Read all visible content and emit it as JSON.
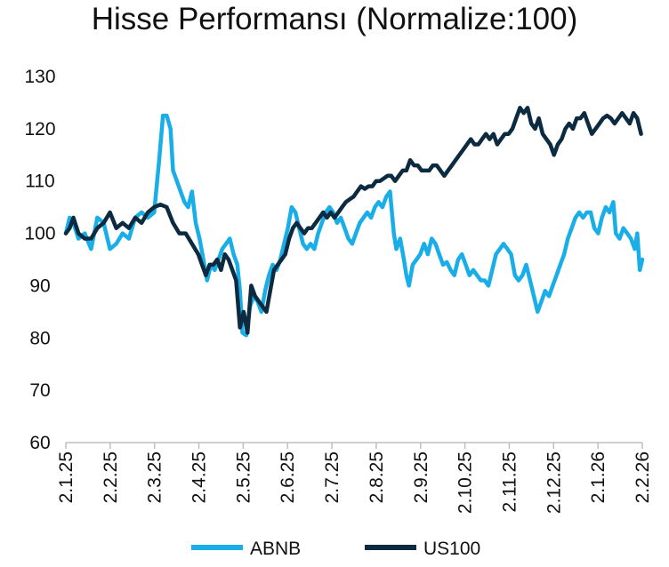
{
  "chart_data": {
    "type": "line",
    "title": "Hisse Performansı (Normalize:100)",
    "xlabel": "",
    "ylabel": "",
    "ylim": [
      60,
      130
    ],
    "yticks": [
      60,
      70,
      80,
      90,
      100,
      110,
      120,
      130
    ],
    "xticks": [
      "2.1.25",
      "2.2.25",
      "2.3.25",
      "2.4.25",
      "2.5.25",
      "2.6.25",
      "2.7.25",
      "2.8.25",
      "2.9.25",
      "2.10.25",
      "2.11.25",
      "2.12.25",
      "2.1.26",
      "2.2.26"
    ],
    "grid": false,
    "legend": "bottom",
    "series": [
      {
        "name": "ABNB",
        "color": "#1aaee8",
        "points": [
          [
            0,
            100
          ],
          [
            0.3,
            103
          ],
          [
            0.6,
            102
          ],
          [
            1,
            99
          ],
          [
            1.5,
            100
          ],
          [
            2,
            97
          ],
          [
            2.5,
            103
          ],
          [
            3,
            102
          ],
          [
            3.5,
            97
          ],
          [
            4,
            98
          ],
          [
            4.5,
            100
          ],
          [
            5,
            99
          ],
          [
            5.5,
            103
          ],
          [
            6,
            104
          ],
          [
            6.5,
            103
          ],
          [
            7,
            104
          ],
          [
            7.4,
            114
          ],
          [
            7.7,
            122.5
          ],
          [
            8,
            122.5
          ],
          [
            8.3,
            120
          ],
          [
            8.5,
            112
          ],
          [
            8.8,
            110
          ],
          [
            9.1,
            108
          ],
          [
            9.4,
            106
          ],
          [
            9.7,
            105
          ],
          [
            10,
            108
          ],
          [
            10.3,
            102
          ],
          [
            10.6,
            99
          ],
          [
            10.9,
            95
          ],
          [
            11.2,
            91
          ],
          [
            11.5,
            94
          ],
          [
            11.8,
            93
          ],
          [
            12.1,
            95
          ],
          [
            12.4,
            97
          ],
          [
            12.7,
            98
          ],
          [
            13,
            99
          ],
          [
            13.3,
            96
          ],
          [
            13.6,
            94
          ],
          [
            13.8,
            89
          ],
          [
            14,
            81
          ],
          [
            14.3,
            80.5
          ],
          [
            14.6,
            86
          ],
          [
            14.9,
            88
          ],
          [
            15.2,
            87
          ],
          [
            15.5,
            85
          ],
          [
            15.8,
            89
          ],
          [
            16.1,
            92
          ],
          [
            16.4,
            94
          ],
          [
            16.7,
            93
          ],
          [
            17,
            95
          ],
          [
            17.3,
            98
          ],
          [
            17.6,
            101
          ],
          [
            17.9,
            105
          ],
          [
            18.2,
            104
          ],
          [
            18.5,
            101
          ],
          [
            18.8,
            98
          ],
          [
            19.1,
            97
          ],
          [
            19.4,
            98
          ],
          [
            19.7,
            97
          ],
          [
            20,
            100
          ],
          [
            20.3,
            102
          ],
          [
            20.6,
            104
          ],
          [
            20.9,
            105
          ],
          [
            21.2,
            104
          ],
          [
            21.5,
            102
          ],
          [
            21.8,
            103
          ],
          [
            22.1,
            101
          ],
          [
            22.4,
            99
          ],
          [
            22.7,
            98
          ],
          [
            23,
            100
          ],
          [
            23.3,
            102
          ],
          [
            23.6,
            103
          ],
          [
            23.9,
            104
          ],
          [
            24.2,
            103
          ],
          [
            24.5,
            105
          ],
          [
            24.8,
            106
          ],
          [
            25.1,
            105
          ],
          [
            25.4,
            107
          ],
          [
            25.7,
            108
          ],
          [
            26,
            100
          ],
          [
            26.2,
            97
          ],
          [
            26.5,
            99
          ],
          [
            26.8,
            95
          ],
          [
            27,
            92
          ],
          [
            27.2,
            90
          ],
          [
            27.5,
            94
          ],
          [
            27.8,
            95
          ],
          [
            28.1,
            96
          ],
          [
            28.4,
            98
          ],
          [
            28.7,
            96
          ],
          [
            29,
            99
          ],
          [
            29.3,
            98
          ],
          [
            29.6,
            96
          ],
          [
            29.9,
            94
          ],
          [
            30.2,
            94.5
          ],
          [
            30.5,
            93
          ],
          [
            30.8,
            92
          ],
          [
            31.1,
            95
          ],
          [
            31.4,
            96
          ],
          [
            31.7,
            94
          ],
          [
            32,
            92
          ],
          [
            32.3,
            93
          ],
          [
            32.6,
            92
          ],
          [
            32.9,
            91
          ],
          [
            33.2,
            91
          ],
          [
            33.5,
            90
          ],
          [
            33.8,
            93
          ],
          [
            34.1,
            96
          ],
          [
            34.4,
            97
          ],
          [
            34.7,
            98
          ],
          [
            35,
            97
          ],
          [
            35.3,
            96
          ],
          [
            35.6,
            92
          ],
          [
            35.9,
            91
          ],
          [
            36.2,
            92
          ],
          [
            36.5,
            94
          ],
          [
            36.8,
            91
          ],
          [
            37.1,
            88
          ],
          [
            37.4,
            85
          ],
          [
            37.7,
            87
          ],
          [
            38,
            89
          ],
          [
            38.3,
            88
          ],
          [
            38.6,
            90
          ],
          [
            38.9,
            92
          ],
          [
            39.2,
            94
          ],
          [
            39.5,
            96
          ],
          [
            39.8,
            99
          ],
          [
            40.1,
            101
          ],
          [
            40.4,
            103
          ],
          [
            40.7,
            104
          ],
          [
            41,
            103
          ],
          [
            41.3,
            104
          ],
          [
            41.6,
            104
          ],
          [
            41.9,
            101
          ],
          [
            42.2,
            100
          ],
          [
            42.5,
            103
          ],
          [
            42.8,
            105
          ],
          [
            43.1,
            104
          ],
          [
            43.4,
            106
          ],
          [
            43.6,
            100
          ],
          [
            43.9,
            99
          ],
          [
            44.2,
            101
          ],
          [
            44.5,
            100
          ],
          [
            44.8,
            99
          ],
          [
            45.1,
            97
          ],
          [
            45.3,
            100
          ],
          [
            45.5,
            93
          ],
          [
            45.7,
            95
          ]
        ]
      },
      {
        "name": "US100",
        "color": "#0c2a40",
        "points": [
          [
            0,
            100
          ],
          [
            0.3,
            101
          ],
          [
            0.6,
            103
          ],
          [
            1,
            100
          ],
          [
            1.5,
            99
          ],
          [
            2,
            99
          ],
          [
            2.5,
            101
          ],
          [
            3,
            102
          ],
          [
            3.5,
            104
          ],
          [
            4,
            101
          ],
          [
            4.5,
            102
          ],
          [
            5,
            101
          ],
          [
            5.5,
            103
          ],
          [
            6,
            102
          ],
          [
            6.5,
            104
          ],
          [
            7,
            105
          ],
          [
            7.5,
            105.5
          ],
          [
            8,
            105
          ],
          [
            8.5,
            102
          ],
          [
            9,
            100
          ],
          [
            9.5,
            100
          ],
          [
            10,
            98
          ],
          [
            10.5,
            96
          ],
          [
            10.8,
            94
          ],
          [
            11.1,
            92
          ],
          [
            11.4,
            94
          ],
          [
            11.7,
            94
          ],
          [
            12,
            95
          ],
          [
            12.3,
            93
          ],
          [
            12.6,
            96
          ],
          [
            12.9,
            95
          ],
          [
            13.2,
            93
          ],
          [
            13.5,
            91
          ],
          [
            13.8,
            82
          ],
          [
            14.1,
            85
          ],
          [
            14.4,
            81
          ],
          [
            14.7,
            90
          ],
          [
            15,
            88
          ],
          [
            15.3,
            87
          ],
          [
            15.6,
            86
          ],
          [
            15.9,
            85
          ],
          [
            16.2,
            89
          ],
          [
            16.5,
            93
          ],
          [
            16.8,
            94
          ],
          [
            17.1,
            95
          ],
          [
            17.4,
            96
          ],
          [
            17.7,
            99
          ],
          [
            18,
            101
          ],
          [
            18.3,
            102
          ],
          [
            18.6,
            101
          ],
          [
            18.9,
            100
          ],
          [
            19.2,
            101
          ],
          [
            19.5,
            101
          ],
          [
            19.8,
            102
          ],
          [
            20.1,
            103
          ],
          [
            20.4,
            104
          ],
          [
            20.7,
            103
          ],
          [
            21,
            104
          ],
          [
            21.3,
            103
          ],
          [
            21.6,
            104
          ],
          [
            21.9,
            105
          ],
          [
            22.2,
            106
          ],
          [
            22.5,
            106.5
          ],
          [
            22.8,
            107
          ],
          [
            23.1,
            108
          ],
          [
            23.4,
            109
          ],
          [
            23.7,
            108.5
          ],
          [
            24,
            109
          ],
          [
            24.3,
            109
          ],
          [
            24.6,
            110
          ],
          [
            24.9,
            110
          ],
          [
            25.2,
            110.5
          ],
          [
            25.5,
            111
          ],
          [
            25.8,
            111
          ],
          [
            26.1,
            110
          ],
          [
            26.4,
            111
          ],
          [
            26.7,
            112
          ],
          [
            27,
            112
          ],
          [
            27.3,
            114
          ],
          [
            27.6,
            113
          ],
          [
            27.9,
            113
          ],
          [
            28.2,
            112
          ],
          [
            28.5,
            112
          ],
          [
            28.8,
            112
          ],
          [
            29.1,
            113
          ],
          [
            29.4,
            113
          ],
          [
            29.7,
            112
          ],
          [
            30,
            111
          ],
          [
            30.3,
            112
          ],
          [
            30.6,
            113
          ],
          [
            30.9,
            114
          ],
          [
            31.2,
            115
          ],
          [
            31.5,
            116
          ],
          [
            31.8,
            117
          ],
          [
            32.1,
            118
          ],
          [
            32.4,
            117
          ],
          [
            32.7,
            117
          ],
          [
            33,
            118
          ],
          [
            33.3,
            119
          ],
          [
            33.6,
            118
          ],
          [
            33.9,
            119
          ],
          [
            34.2,
            117
          ],
          [
            34.5,
            118
          ],
          [
            34.8,
            119
          ],
          [
            35.1,
            119
          ],
          [
            35.4,
            120
          ],
          [
            35.7,
            122
          ],
          [
            36,
            124
          ],
          [
            36.3,
            123
          ],
          [
            36.6,
            124
          ],
          [
            36.9,
            121
          ],
          [
            37.2,
            120
          ],
          [
            37.5,
            122
          ],
          [
            37.8,
            119
          ],
          [
            38.1,
            118
          ],
          [
            38.4,
            117
          ],
          [
            38.7,
            115
          ],
          [
            39,
            117
          ],
          [
            39.3,
            118
          ],
          [
            39.6,
            120
          ],
          [
            39.9,
            121
          ],
          [
            40.2,
            120
          ],
          [
            40.5,
            122
          ],
          [
            40.8,
            122
          ],
          [
            41.1,
            123
          ],
          [
            41.4,
            121
          ],
          [
            41.7,
            119
          ],
          [
            42,
            120
          ],
          [
            42.3,
            121
          ],
          [
            42.6,
            122
          ],
          [
            42.9,
            122.5
          ],
          [
            43.2,
            122
          ],
          [
            43.5,
            121
          ],
          [
            43.8,
            122
          ],
          [
            44.1,
            123
          ],
          [
            44.4,
            122
          ],
          [
            44.7,
            121
          ],
          [
            45,
            123
          ],
          [
            45.3,
            122
          ],
          [
            45.6,
            119
          ]
        ]
      }
    ]
  }
}
